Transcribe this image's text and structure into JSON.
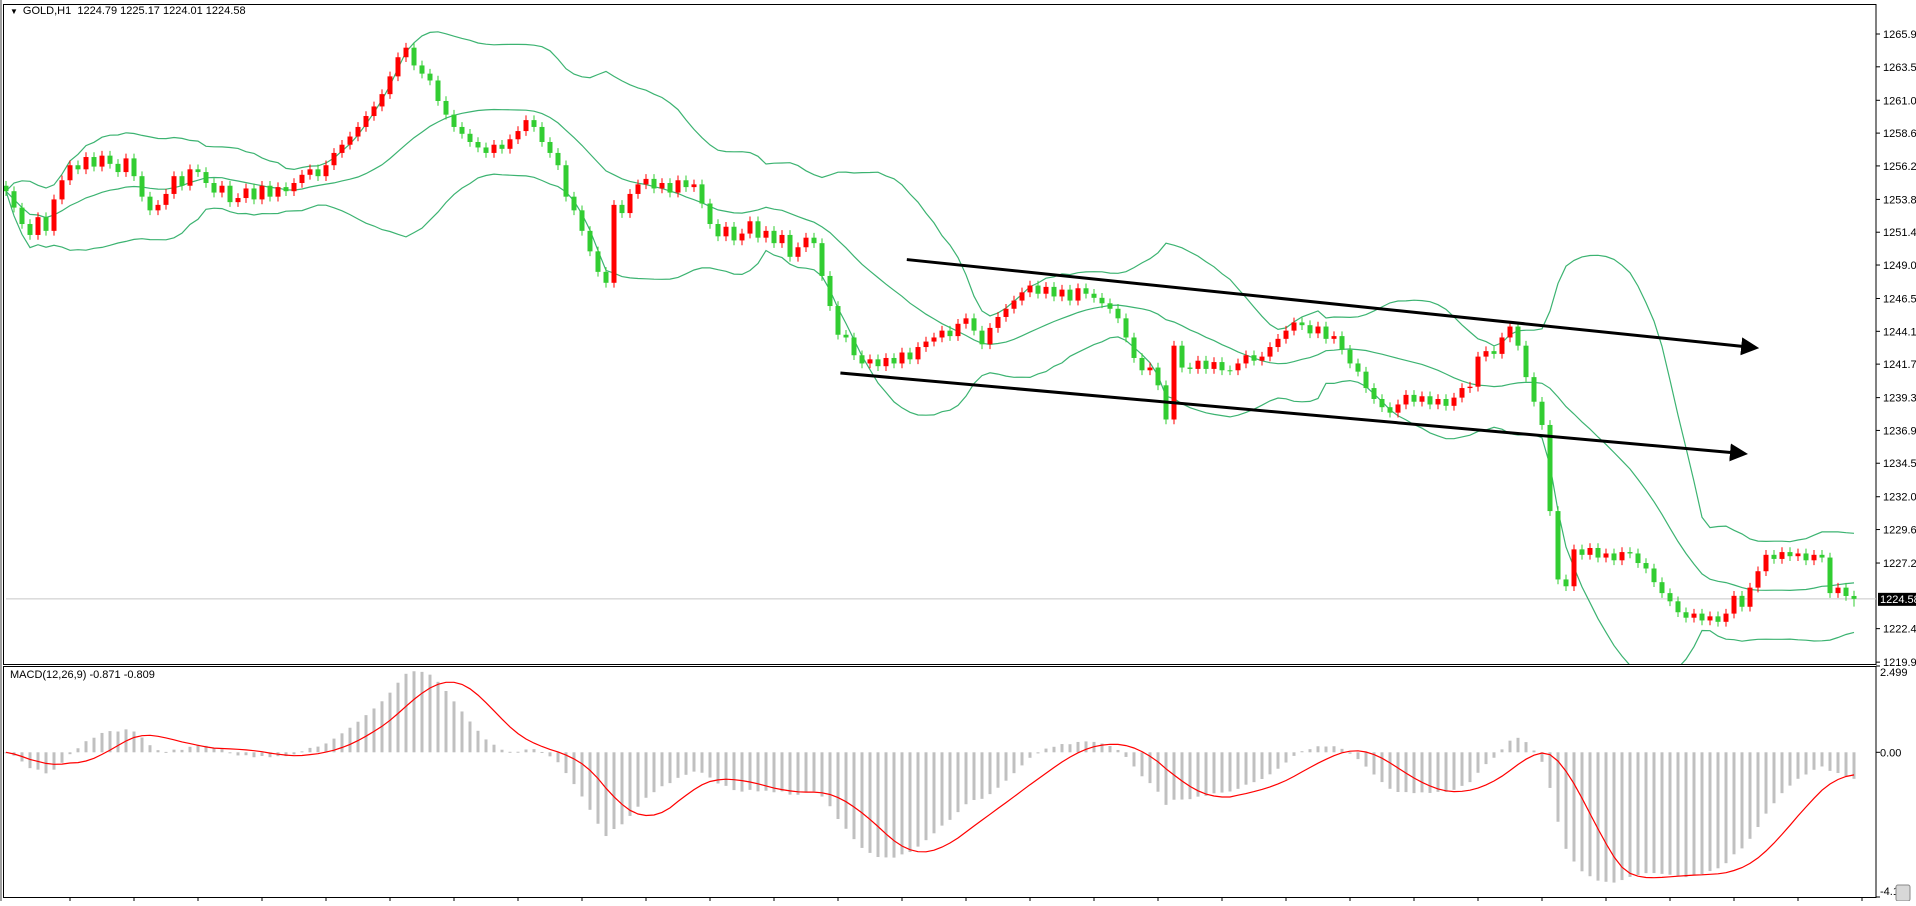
{
  "header": {
    "symbol_label": "GOLD,H1",
    "ohlc_label": "1224.79 1225.17 1224.01 1224.58",
    "menu_icon": "triangle-down-icon"
  },
  "macd_header": {
    "label": "MACD(12,26,9) -0.871 -0.809",
    "fast": 12,
    "slow": 26,
    "signal": 9
  },
  "colors": {
    "bull_candle": "#ff0000",
    "bear_candle": "#32cd32",
    "bollinger": "#3cb371",
    "macd_histogram": "#c0c0c0",
    "macd_signal": "#ff0000",
    "trend_line": "#000000",
    "price_line": "#c8c8c8"
  },
  "chart_data": [
    {
      "type": "candlestick",
      "title": "GOLD,H1",
      "ylim": [
        1219.8,
        1268.1
      ],
      "price_ticks": [
        "1265.90",
        "1263.50",
        "1261.05",
        "1258.65",
        "1256.25",
        "1253.80",
        "1251.40",
        "1249.00",
        "1246.55",
        "1244.15",
        "1241.75",
        "1239.30",
        "1236.90",
        "1234.50",
        "1232.05",
        "1229.65",
        "1227.20",
        "1224.58",
        "1222.40",
        "1219.95"
      ],
      "current_price": 1224.58,
      "last_bar": {
        "open": 1224.79,
        "high": 1225.17,
        "low": 1224.01,
        "close": 1224.58
      },
      "bollinger": {
        "period": 20,
        "deviation": 2
      },
      "closes": [
        1254.4,
        1253.2,
        1252.0,
        1251.2,
        1252.5,
        1251.5,
        1253.8,
        1255.2,
        1256.3,
        1256.0,
        1256.9,
        1256.2,
        1257.0,
        1256.4,
        1255.8,
        1256.8,
        1255.5,
        1254.0,
        1253.0,
        1253.4,
        1254.2,
        1255.5,
        1254.8,
        1256.0,
        1255.8,
        1255.0,
        1254.3,
        1254.8,
        1253.6,
        1253.9,
        1254.6,
        1253.8,
        1254.8,
        1254.0,
        1254.7,
        1254.4,
        1255.0,
        1255.6,
        1256.0,
        1255.5,
        1256.3,
        1257.2,
        1257.8,
        1258.4,
        1259.1,
        1259.9,
        1260.6,
        1261.5,
        1262.8,
        1264.2,
        1264.9,
        1263.6,
        1263.0,
        1262.5,
        1261.0,
        1260.0,
        1259.1,
        1258.6,
        1258.0,
        1257.6,
        1257.2,
        1257.8,
        1257.5,
        1258.2,
        1258.8,
        1259.6,
        1259.1,
        1258.0,
        1257.2,
        1256.3,
        1254.0,
        1253.0,
        1251.5,
        1250.0,
        1248.5,
        1247.7,
        1253.4,
        1252.8,
        1254.2,
        1254.9,
        1255.3,
        1254.6,
        1255.0,
        1254.3,
        1255.2,
        1254.7,
        1254.9,
        1253.5,
        1252.0,
        1251.1,
        1251.8,
        1250.8,
        1251.3,
        1252.2,
        1251.0,
        1251.5,
        1250.6,
        1251.2,
        1249.6,
        1250.3,
        1251.0,
        1250.6,
        1248.2,
        1246.0,
        1243.9,
        1243.7,
        1242.4,
        1241.8,
        1242.1,
        1241.6,
        1242.2,
        1241.8,
        1242.6,
        1242.1,
        1243.0,
        1243.4,
        1243.7,
        1244.2,
        1243.8,
        1244.7,
        1245.1,
        1244.2,
        1243.2,
        1244.4,
        1245.2,
        1245.8,
        1246.4,
        1247.0,
        1247.5,
        1246.9,
        1247.4,
        1246.7,
        1247.2,
        1246.4,
        1247.3,
        1246.9,
        1246.6,
        1246.2,
        1245.8,
        1245.1,
        1243.7,
        1242.2,
        1241.3,
        1241.5,
        1240.2,
        1237.7,
        1243.1,
        1241.5,
        1241.4,
        1242.0,
        1241.4,
        1241.9,
        1241.3,
        1241.3,
        1241.8,
        1242.4,
        1242.0,
        1242.3,
        1243.0,
        1243.6,
        1244.2,
        1244.8,
        1244.6,
        1244.0,
        1244.5,
        1243.6,
        1243.8,
        1242.8,
        1241.8,
        1241.2,
        1240.0,
        1239.2,
        1238.6,
        1238.2,
        1238.8,
        1239.5,
        1239.0,
        1239.4,
        1238.8,
        1239.2,
        1238.7,
        1239.3,
        1240.0,
        1240.1,
        1242.3,
        1242.7,
        1242.5,
        1243.7,
        1244.5,
        1243.1,
        1240.8,
        1239.0,
        1237.3,
        1231.0,
        1226.0,
        1225.5,
        1228.2,
        1227.8,
        1228.3,
        1227.6,
        1227.9,
        1227.4,
        1228.0,
        1227.9,
        1227.2,
        1226.8,
        1225.8,
        1225.0,
        1224.4,
        1223.6,
        1223.2,
        1223.5,
        1223.0,
        1223.3,
        1222.9,
        1223.5,
        1224.8,
        1224.0,
        1225.4,
        1226.6,
        1227.8,
        1227.5,
        1228.0,
        1227.7,
        1227.9,
        1227.4,
        1227.8,
        1227.6,
        1225.0,
        1225.4,
        1224.79,
        1224.58
      ],
      "trend_lines": [
        {
          "from": {
            "bar": 112.6,
            "price": 1249.4
          },
          "to": {
            "bar": 219.4,
            "price": 1243.0
          },
          "arrow": true
        },
        {
          "from": {
            "bar": 104.3,
            "price": 1241.1
          },
          "to": {
            "bar": 218.0,
            "price": 1235.25
          },
          "arrow": true
        }
      ]
    },
    {
      "type": "bar+line",
      "title": "MACD(12,26,9)",
      "ylim": [
        -4.19,
        2.499
      ],
      "tick_labels": [
        "2.499",
        "0.00",
        "-4.19"
      ],
      "series": [
        {
          "name": "MACD",
          "style": "histogram",
          "current": -0.871
        },
        {
          "name": "Signal",
          "style": "line",
          "current": -0.809
        }
      ]
    }
  ]
}
